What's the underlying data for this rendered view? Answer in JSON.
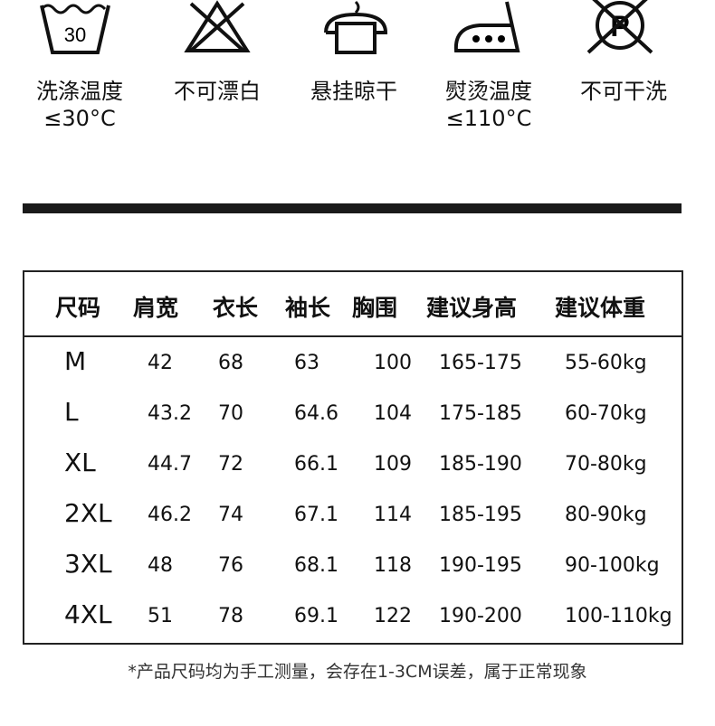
{
  "care": [
    {
      "icon": "wash-30-icon",
      "label": "洗涤温度",
      "sub": "≤30°C",
      "tub_text": "30"
    },
    {
      "icon": "no-bleach-icon",
      "label": "不可漂白",
      "sub": ""
    },
    {
      "icon": "hang-dry-icon",
      "label": "悬挂晾干",
      "sub": ""
    },
    {
      "icon": "iron-icon",
      "label": "熨烫温度",
      "sub": "≤110°C"
    },
    {
      "icon": "no-dry-clean-icon",
      "label": "不可干洗",
      "sub": "",
      "circle_text": "P"
    }
  ],
  "table": {
    "headers": [
      "尺码",
      "肩宽",
      "衣长",
      "袖长",
      "胸围",
      "建议身高",
      "建议体重"
    ],
    "rows": [
      [
        "M",
        "42",
        "68",
        "63",
        "100",
        "165-175",
        "55-60kg"
      ],
      [
        "L",
        "43.2",
        "70",
        "64.6",
        "104",
        "175-185",
        "60-70kg"
      ],
      [
        "XL",
        "44.7",
        "72",
        "66.1",
        "109",
        "185-190",
        "70-80kg"
      ],
      [
        "2XL",
        "46.2",
        "74",
        "67.1",
        "114",
        "185-195",
        "80-90kg"
      ],
      [
        "3XL",
        "48",
        "76",
        "68.1",
        "118",
        "190-195",
        "90-100kg"
      ],
      [
        "4XL",
        "51",
        "78",
        "69.1",
        "122",
        "190-200",
        "100-110kg"
      ]
    ]
  },
  "note": "*产品尺码均为手工测量，会存在1-3CM误差，属于正常现象"
}
